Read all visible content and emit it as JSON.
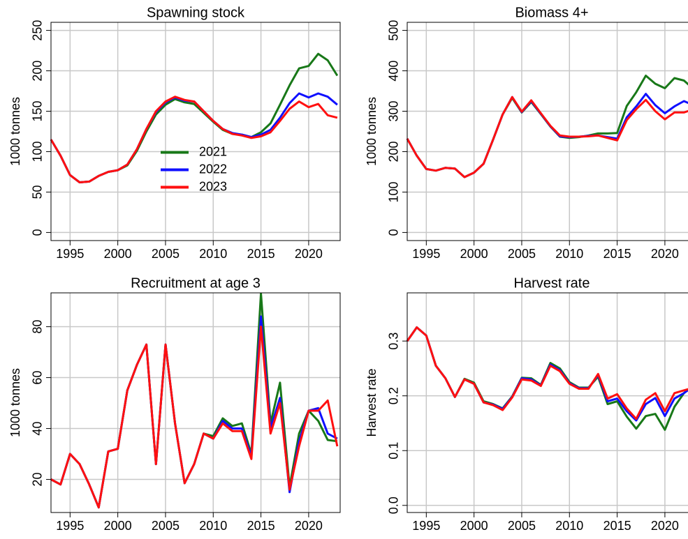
{
  "chart_data": [
    {
      "type": "line",
      "title": "Spawning stock",
      "ylabel": "1000 tonnes",
      "legend": "center",
      "grid": true,
      "x": [
        1993,
        1994,
        1995,
        1996,
        1997,
        1998,
        1999,
        2000,
        2001,
        2002,
        2003,
        2004,
        2005,
        2006,
        2007,
        2008,
        2009,
        2010,
        2011,
        2012,
        2013,
        2014,
        2015,
        2016,
        2017,
        2018,
        2019,
        2020,
        2021,
        2022,
        2023
      ],
      "xlim": [
        1993,
        2023.3
      ],
      "xticks": [
        1995,
        2000,
        2005,
        2010,
        2015,
        2020
      ],
      "ylim": [
        -10,
        260
      ],
      "yticks": [
        0,
        50,
        100,
        150,
        200,
        250
      ],
      "series": [
        {
          "name": "2021",
          "color": "#187818",
          "values": [
            115,
            95,
            71,
            62,
            63,
            70,
            75,
            77,
            83,
            101,
            125,
            146,
            158,
            165,
            161,
            159,
            148,
            137,
            127,
            122,
            121,
            118,
            124,
            135,
            158,
            182,
            203,
            206,
            221,
            213,
            194
          ]
        },
        {
          "name": "2022",
          "color": "#1010ff",
          "values": [
            115,
            95,
            71,
            62,
            63,
            70,
            75,
            77,
            84,
            103,
            128,
            149,
            161,
            167,
            163,
            162,
            150,
            138,
            128,
            123,
            121,
            118,
            121,
            127,
            142,
            160,
            172,
            167,
            172,
            168,
            158
          ]
        },
        {
          "name": "2023",
          "color": "#ff1010",
          "values": [
            115,
            95,
            71,
            62,
            63,
            70,
            75,
            77,
            84,
            103,
            128,
            150,
            162,
            168,
            164,
            162,
            150,
            138,
            128,
            122,
            120,
            117,
            119,
            124,
            138,
            153,
            162,
            155,
            159,
            145,
            142
          ]
        }
      ]
    },
    {
      "type": "line",
      "title": "Biomass 4+",
      "ylabel": "1000 tonnes",
      "grid": true,
      "x": [
        1993,
        1994,
        1995,
        1996,
        1997,
        1998,
        1999,
        2000,
        2001,
        2002,
        2003,
        2004,
        2005,
        2006,
        2007,
        2008,
        2009,
        2010,
        2011,
        2012,
        2013,
        2014,
        2015,
        2016,
        2017,
        2018,
        2019,
        2020,
        2021,
        2022,
        2023
      ],
      "xlim": [
        1993,
        2023.3
      ],
      "xticks": [
        1995,
        2000,
        2005,
        2010,
        2015,
        2020
      ],
      "ylim": [
        -20,
        520
      ],
      "yticks": [
        0,
        100,
        200,
        300,
        400,
        500
      ],
      "series": [
        {
          "color": "#187818",
          "values": [
            232,
            190,
            157,
            153,
            160,
            158,
            137,
            148,
            170,
            230,
            292,
            333,
            297,
            323,
            293,
            262,
            237,
            234,
            236,
            240,
            245,
            245,
            246,
            313,
            347,
            388,
            368,
            357,
            382,
            376,
            355
          ]
        },
        {
          "color": "#1010ff",
          "values": [
            232,
            190,
            157,
            153,
            160,
            158,
            137,
            148,
            170,
            230,
            292,
            335,
            298,
            325,
            294,
            263,
            238,
            236,
            237,
            239,
            240,
            236,
            232,
            285,
            312,
            343,
            315,
            295,
            312,
            325,
            315
          ]
        },
        {
          "color": "#ff1010",
          "values": [
            232,
            190,
            157,
            153,
            160,
            158,
            137,
            148,
            170,
            230,
            292,
            335,
            299,
            327,
            295,
            264,
            240,
            237,
            237,
            238,
            240,
            234,
            228,
            278,
            305,
            328,
            300,
            280,
            297,
            297,
            305
          ]
        }
      ]
    },
    {
      "type": "line",
      "title": "Recruitment at age 3",
      "ylabel": "1000 tonnes",
      "grid": true,
      "x": [
        1993,
        1994,
        1995,
        1996,
        1997,
        1998,
        1999,
        2000,
        2001,
        2002,
        2003,
        2004,
        2005,
        2006,
        2007,
        2008,
        2009,
        2010,
        2011,
        2012,
        2013,
        2014,
        2015,
        2016,
        2017,
        2018,
        2019,
        2020,
        2021,
        2022,
        2023
      ],
      "xlim": [
        1993,
        2023.3
      ],
      "xticks": [
        1995,
        2000,
        2005,
        2010,
        2015,
        2020
      ],
      "ylim": [
        7,
        93.3
      ],
      "yticks": [
        20,
        40,
        60,
        80
      ],
      "series": [
        {
          "color": "#187818",
          "values": [
            20,
            18,
            30,
            26,
            18,
            9,
            31,
            32,
            55,
            65,
            73,
            26,
            73,
            42,
            18.5,
            26,
            38,
            37,
            44,
            41,
            42,
            30,
            93,
            42,
            58,
            17,
            38,
            47,
            43,
            35.5,
            35
          ]
        },
        {
          "color": "#1010ff",
          "values": [
            20,
            18,
            30,
            26,
            18,
            9,
            31,
            32,
            55,
            65,
            73,
            26,
            73,
            42,
            18.5,
            26,
            38,
            36,
            43,
            40,
            40,
            29,
            84,
            40,
            52,
            15,
            35,
            47,
            48,
            38,
            36
          ]
        },
        {
          "color": "#ff1010",
          "values": [
            20,
            18,
            30,
            26,
            18,
            9,
            31,
            32,
            55,
            65,
            73,
            26,
            73,
            42,
            18.5,
            26,
            38,
            36,
            42,
            39,
            39,
            28,
            80,
            38,
            50,
            16,
            33,
            47,
            47,
            51,
            33
          ]
        }
      ]
    },
    {
      "type": "line",
      "title": "Harvest rate",
      "ylabel": "Harvest rate",
      "grid": true,
      "x": [
        1993,
        1994,
        1995,
        1996,
        1997,
        1998,
        1999,
        2000,
        2001,
        2002,
        2003,
        2004,
        2005,
        2006,
        2007,
        2008,
        2009,
        2010,
        2011,
        2012,
        2013,
        2014,
        2015,
        2016,
        2017,
        2018,
        2019,
        2020,
        2021,
        2022,
        2023
      ],
      "xlim": [
        1993,
        2023.3
      ],
      "xticks": [
        1995,
        2000,
        2005,
        2010,
        2015,
        2020
      ],
      "ylim": [
        -0.013,
        0.388
      ],
      "yticks": [
        {
          "value": 0,
          "label": "0.0"
        },
        0.1,
        0.2,
        0.3
      ],
      "series": [
        {
          "color": "#187818",
          "values": [
            0.3,
            0.325,
            0.31,
            0.255,
            0.232,
            0.198,
            0.231,
            0.224,
            0.19,
            0.185,
            0.177,
            0.199,
            0.233,
            0.232,
            0.22,
            0.26,
            0.25,
            0.225,
            0.215,
            0.215,
            0.235,
            0.185,
            0.19,
            0.162,
            0.14,
            0.163,
            0.167,
            0.138,
            0.18,
            0.205,
            0.22
          ]
        },
        {
          "color": "#1010ff",
          "values": [
            0.3,
            0.325,
            0.31,
            0.255,
            0.232,
            0.198,
            0.23,
            0.222,
            0.188,
            0.184,
            0.176,
            0.198,
            0.232,
            0.23,
            0.219,
            0.257,
            0.247,
            0.223,
            0.214,
            0.214,
            0.238,
            0.19,
            0.195,
            0.172,
            0.155,
            0.185,
            0.196,
            0.163,
            0.195,
            0.205,
            0.218
          ]
        },
        {
          "color": "#ff1010",
          "values": [
            0.3,
            0.325,
            0.31,
            0.255,
            0.232,
            0.198,
            0.23,
            0.222,
            0.188,
            0.183,
            0.174,
            0.197,
            0.23,
            0.228,
            0.218,
            0.255,
            0.245,
            0.222,
            0.213,
            0.213,
            0.24,
            0.195,
            0.203,
            0.177,
            0.158,
            0.193,
            0.205,
            0.172,
            0.205,
            0.21,
            0.215
          ]
        }
      ]
    }
  ]
}
